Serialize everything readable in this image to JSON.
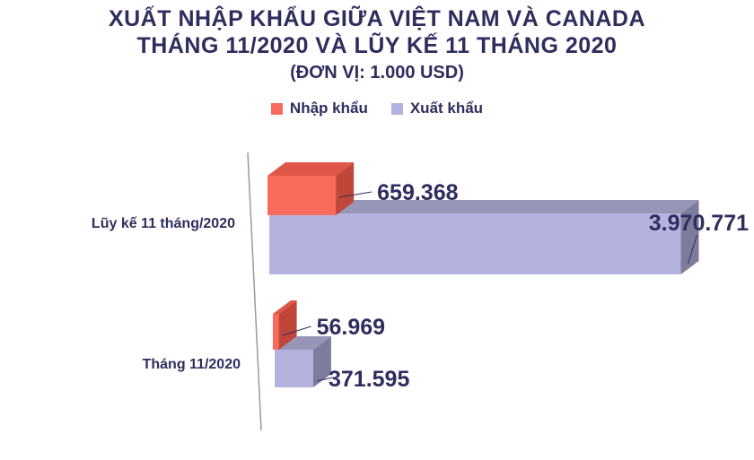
{
  "chart_data": {
    "type": "bar",
    "orientation": "horizontal",
    "style": "3d",
    "title": "XUẤT NHẬP KHẨU GIỮA VIỆT NAM VÀ CANADA",
    "title_line2": "THÁNG 11/2020 VÀ LŨY KẾ 11 THÁNG 2020",
    "subtitle": "(ĐƠN VỊ: 1.000 USD)",
    "legend_placement": "top",
    "categories": [
      "Lũy kế 11 tháng/2020",
      "Tháng 11/2020"
    ],
    "series": [
      {
        "name": "Nhập khẩu",
        "values": [
          659368,
          56969
        ],
        "value_labels": [
          "659.368",
          "56.969"
        ],
        "color": "#f86a5c",
        "side_color": "#c04639",
        "top_color": "#e0574a"
      },
      {
        "name": "Xuất khẩu",
        "values": [
          3970771,
          371595
        ],
        "value_labels": [
          "3.970.771",
          "371.595"
        ],
        "color": "#b4b2de",
        "side_color": "#7e7c9c",
        "top_color": "#9896b8"
      }
    ],
    "grid": false
  },
  "colors": {
    "text": "#2e2d5e",
    "axis": "#9a9a9a"
  }
}
